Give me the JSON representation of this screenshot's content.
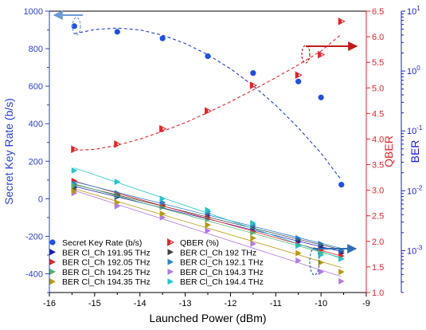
{
  "chart_data": {
    "type": "scatter",
    "xlabel": "Launched Power (dBm)",
    "ylabel_left": "Secret Key Rate (b/s)",
    "ylabel_right1": "QBER",
    "ylabel_right2": "BER",
    "xlim": [
      -16,
      -9
    ],
    "ylim_left": [
      -500,
      1000
    ],
    "ylim_right1": [
      1.0,
      6.5
    ],
    "ylim_right2_log10": [
      -3.7,
      1.0
    ],
    "x_ticks": [
      "-16",
      "-15",
      "-14",
      "-13",
      "-12",
      "-11",
      "-10",
      "-9"
    ],
    "y_left_ticks": [
      "1000",
      "800",
      "600",
      "400",
      "200",
      "0",
      "-200",
      "-400"
    ],
    "y_right1_ticks": [
      "6.5",
      "6.0",
      "5.5",
      "5.0",
      "4.5",
      "4.0",
      "3.5",
      "3.0",
      "2.5",
      "2.0",
      "1.5",
      "1.0"
    ],
    "y_right2_ticks": [
      "10^1",
      "10^0",
      "10^-1",
      "10^-2",
      "10^-3"
    ],
    "colors": {
      "left_axis": "#2b3fd6",
      "right_axis": "#e8232a",
      "ber_axis": "#1a1adf"
    },
    "series": [
      {
        "name": "Secret Key Rate (b/s)",
        "axis": "left",
        "marker": "circle",
        "color": "#1f4fe8",
        "x": [
          -15.45,
          -14.5,
          -13.5,
          -12.5,
          -11.5,
          -10.5,
          -10.0,
          -9.55
        ],
        "y": [
          920,
          890,
          855,
          760,
          670,
          625,
          540,
          75
        ]
      },
      {
        "name": "QBER (%)",
        "axis": "right1",
        "marker": "half-triangle-right",
        "color": "#e8232a",
        "x": [
          -15.45,
          -14.5,
          -13.5,
          -12.5,
          -11.5,
          -10.5,
          -10.0,
          -9.55
        ],
        "y": [
          3.8,
          3.9,
          4.2,
          4.55,
          5.05,
          5.25,
          5.65,
          6.3
        ]
      },
      {
        "name": "BER Cl_Ch 191.95 THz",
        "axis": "left",
        "marker": "triangle-right",
        "color": "#1b1bb0",
        "x": [
          -15.45,
          -14.5,
          -13.5,
          -12.5,
          -11.5,
          -10.5,
          -10.0,
          -9.55
        ],
        "y": [
          50,
          10,
          -40,
          -90,
          -160,
          -230,
          -260,
          -290
        ]
      },
      {
        "name": "BER Cl_Ch 192 THz",
        "axis": "left",
        "marker": "triangle-right",
        "color": "#404040",
        "x": [
          -15.45,
          -14.5,
          -13.5,
          -12.5,
          -11.5,
          -10.5,
          -10.0,
          -9.55
        ],
        "y": [
          60,
          20,
          -30,
          -80,
          -150,
          -220,
          -250,
          -280
        ]
      },
      {
        "name": "BER Cl_Ch 192.05 THz",
        "axis": "left",
        "marker": "triangle-right",
        "color": "#e8232a",
        "x": [
          -15.45,
          -14.5,
          -13.5,
          -12.5,
          -11.5,
          -10.5,
          -10.0,
          -9.55
        ],
        "y": [
          95,
          25,
          -35,
          -100,
          -175,
          -245,
          -275,
          -305
        ]
      },
      {
        "name": "BER Cl_Ch 192.1 THz",
        "axis": "left",
        "marker": "triangle-right",
        "color": "#2e80c8",
        "x": [
          -15.45,
          -14.5,
          -13.5,
          -12.5,
          -11.5,
          -10.5,
          -10.0,
          -9.55
        ],
        "y": [
          80,
          30,
          -20,
          -70,
          -140,
          -210,
          -240,
          -275
        ]
      },
      {
        "name": "BER Cl_Ch 194.25 THz",
        "axis": "left",
        "marker": "triangle-right",
        "color": "#55b56f",
        "x": [
          -15.45,
          -14.5,
          -13.5,
          -12.5,
          -11.5,
          -10.5,
          -10.0,
          -9.55
        ],
        "y": [
          70,
          15,
          -45,
          -110,
          -180,
          -250,
          -290,
          -320
        ]
      },
      {
        "name": "BER Cl_Ch 194.3 THz",
        "axis": "left",
        "marker": "triangle-right",
        "color": "#b07be0",
        "x": [
          -15.45,
          -14.5,
          -13.5,
          -12.5,
          -11.5,
          -10.5,
          -10.0,
          -9.55
        ],
        "y": [
          30,
          -40,
          -100,
          -170,
          -240,
          -330,
          -390,
          -440
        ]
      },
      {
        "name": "BER Cl_Ch 194.35 THz",
        "axis": "left",
        "marker": "triangle-right",
        "color": "#b89a10",
        "x": [
          -15.45,
          -14.5,
          -13.5,
          -12.5,
          -11.5,
          -10.5,
          -10.0,
          -9.55
        ],
        "y": [
          40,
          -20,
          -80,
          -140,
          -210,
          -290,
          -340,
          -390
        ]
      },
      {
        "name": "BER Cl_Ch 194.4 THz",
        "axis": "left",
        "marker": "triangle-right",
        "color": "#22c4c8",
        "x": [
          -15.45,
          -14.5,
          -13.5,
          -12.5,
          -11.5,
          -10.5,
          -10.0,
          -9.55
        ],
        "y": [
          150,
          90,
          0,
          -60,
          -130,
          -250,
          -300,
          -320
        ]
      }
    ],
    "fit_lines": [
      {
        "series": "Secret Key Rate (b/s)",
        "style": "dashed",
        "color": "#1f3fcf",
        "x": [
          -15.45,
          -15.0,
          -14.5,
          -14.0,
          -13.5,
          -13.0,
          -12.5,
          -12.0,
          -11.5,
          -11.0,
          -10.5,
          -10.0,
          -9.55
        ],
        "y": [
          880,
          902,
          910,
          900,
          872,
          828,
          768,
          693,
          603,
          498,
          378,
          243,
          100
        ]
      },
      {
        "series": "QBER (%)",
        "style": "dashed",
        "color": "#e8232a",
        "x": [
          -15.45,
          -15.0,
          -14.5,
          -14.0,
          -13.5,
          -13.0,
          -12.5,
          -12.0,
          -11.5,
          -11.0,
          -10.5,
          -10.0,
          -9.55
        ],
        "y": [
          3.78,
          3.8,
          3.88,
          4.0,
          4.15,
          4.32,
          4.52,
          4.73,
          4.96,
          5.2,
          5.45,
          5.72,
          6.05
        ]
      }
    ],
    "legend_position": "bottom-left"
  }
}
